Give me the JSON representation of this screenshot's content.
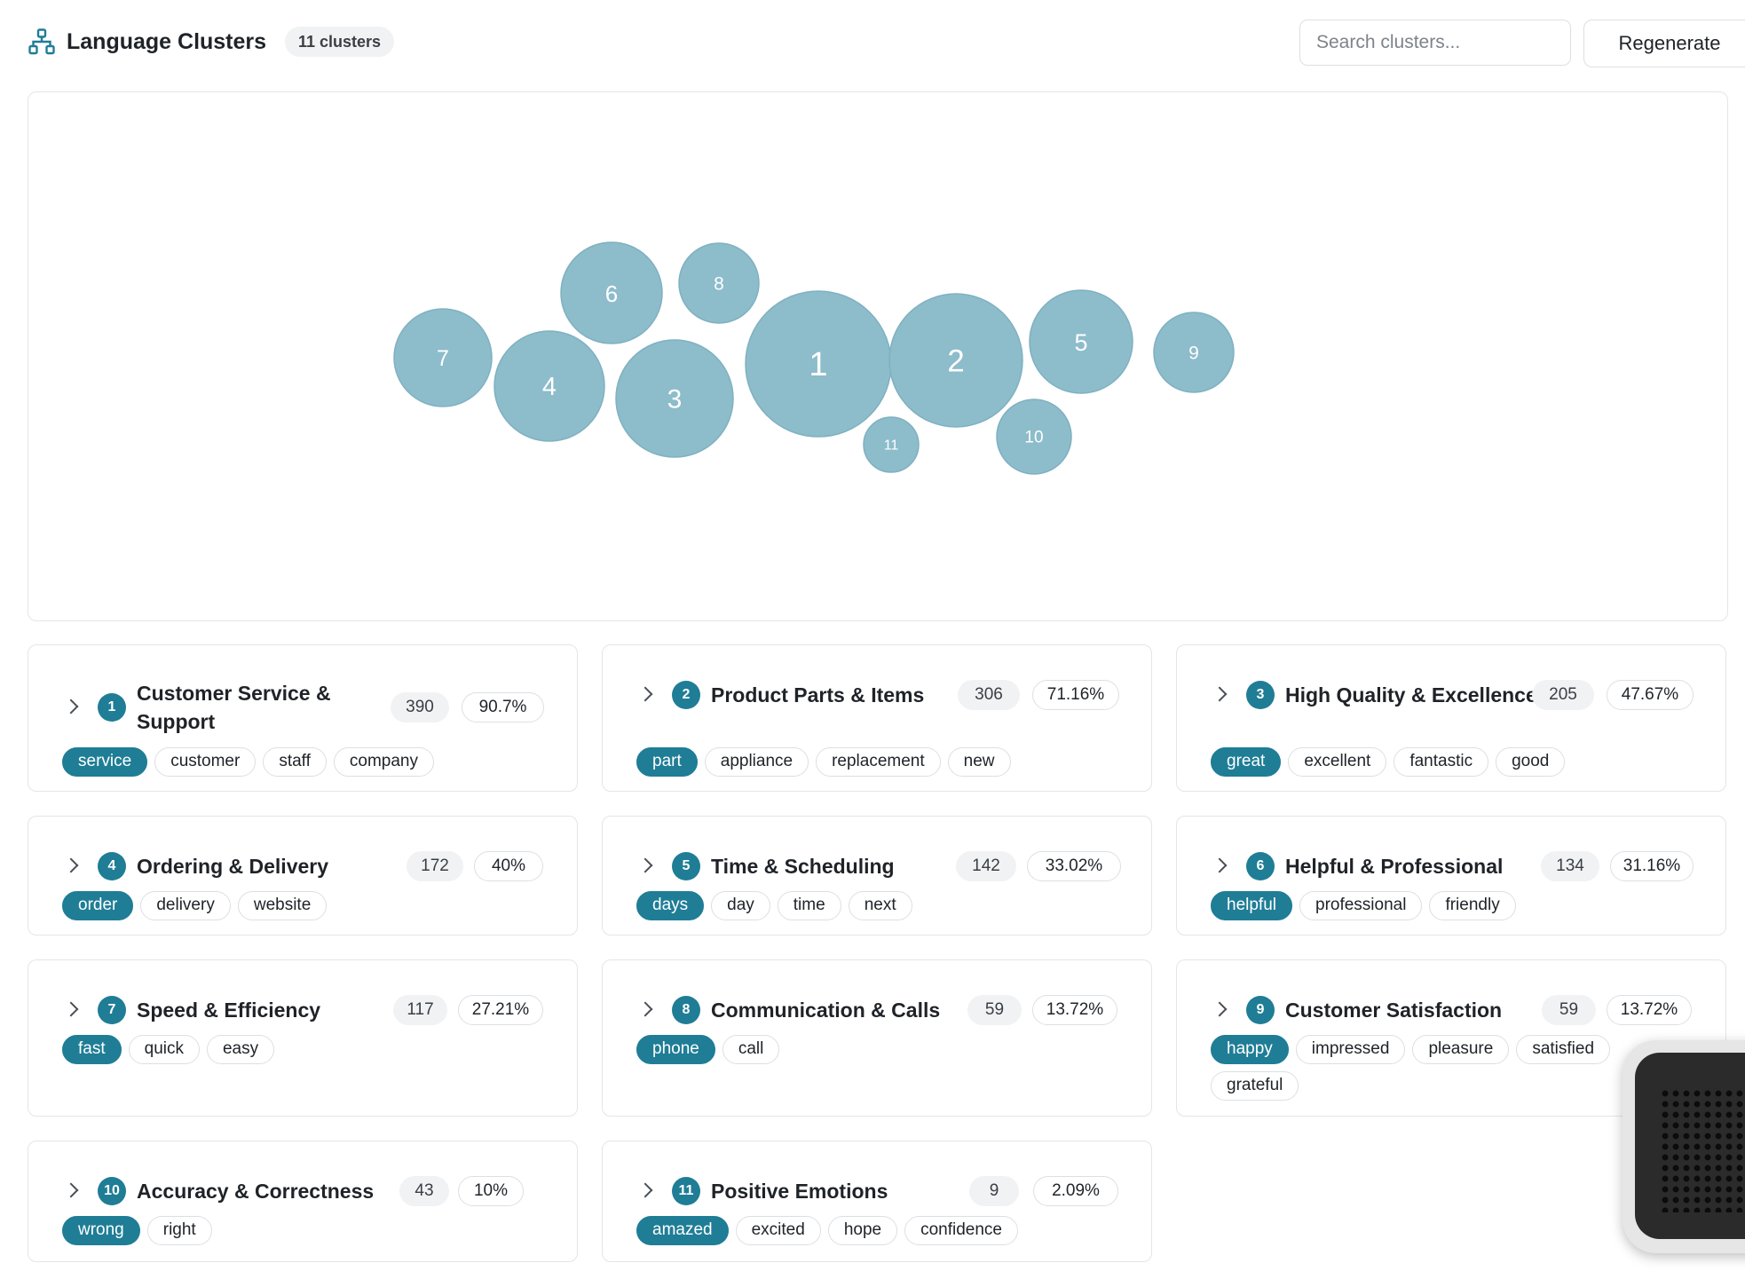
{
  "header": {
    "title": "Language Clusters",
    "count_label": "11 clusters",
    "search_placeholder": "Search clusters...",
    "regenerate_label": "Regenerate",
    "logo_icon": "network-hierarchy-icon"
  },
  "colors": {
    "accent": "#1f7d96",
    "bubble_fill": "#8dbccb",
    "bubble_stroke": "#7fb1c1"
  },
  "chart_data": {
    "type": "bubble",
    "bubbles": [
      {
        "label": "1"
      },
      {
        "label": "2"
      },
      {
        "label": "3"
      },
      {
        "label": "4"
      },
      {
        "label": "5"
      },
      {
        "label": "6"
      },
      {
        "label": "7"
      },
      {
        "label": "8"
      },
      {
        "label": "9"
      },
      {
        "label": "10"
      },
      {
        "label": "11"
      }
    ]
  },
  "clusters": [
    {
      "num": "1",
      "title_line1": "Customer Service &",
      "title_line2": "Support",
      "count": "390",
      "pct": "90.7%",
      "tags": [
        "service",
        "customer",
        "staff",
        "company"
      ]
    },
    {
      "num": "2",
      "title_line1": "Product Parts & Items",
      "title_line2": "",
      "count": "306",
      "pct": "71.16%",
      "tags": [
        "part",
        "appliance",
        "replacement",
        "new"
      ]
    },
    {
      "num": "3",
      "title_line1": "High Quality & Excellence",
      "title_line2": "",
      "count": "205",
      "pct": "47.67%",
      "tags": [
        "great",
        "excellent",
        "fantastic",
        "good"
      ]
    },
    {
      "num": "4",
      "title_line1": "Ordering & Delivery",
      "title_line2": "",
      "count": "172",
      "pct": "40%",
      "tags": [
        "order",
        "delivery",
        "website"
      ]
    },
    {
      "num": "5",
      "title_line1": "Time & Scheduling",
      "title_line2": "",
      "count": "142",
      "pct": "33.02%",
      "tags": [
        "days",
        "day",
        "time",
        "next"
      ]
    },
    {
      "num": "6",
      "title_line1": "Helpful & Professional",
      "title_line2": "",
      "count": "134",
      "pct": "31.16%",
      "tags": [
        "helpful",
        "professional",
        "friendly"
      ]
    },
    {
      "num": "7",
      "title_line1": "Speed & Efficiency",
      "title_line2": "",
      "count": "117",
      "pct": "27.21%",
      "tags": [
        "fast",
        "quick",
        "easy"
      ]
    },
    {
      "num": "8",
      "title_line1": "Communication & Calls",
      "title_line2": "",
      "count": "59",
      "pct": "13.72%",
      "tags": [
        "phone",
        "call"
      ]
    },
    {
      "num": "9",
      "title_line1": "Customer Satisfaction",
      "title_line2": "",
      "count": "59",
      "pct": "13.72%",
      "tags": [
        "happy",
        "impressed",
        "pleasure",
        "satisfied",
        "grateful"
      ]
    },
    {
      "num": "10",
      "title_line1": "Accuracy & Correctness",
      "title_line2": "",
      "count": "43",
      "pct": "10%",
      "tags": [
        "wrong",
        "right"
      ]
    },
    {
      "num": "11",
      "title_line1": "Positive Emotions",
      "title_line2": "",
      "count": "9",
      "pct": "2.09%",
      "tags": [
        "amazed",
        "excited",
        "hope",
        "confidence"
      ]
    }
  ],
  "overlay": {
    "icon": "speaker-device-icon"
  }
}
